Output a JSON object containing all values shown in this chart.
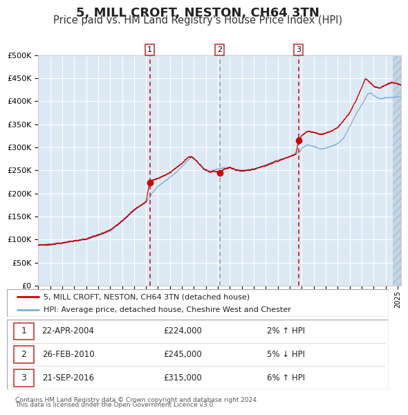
{
  "title": "5, MILL CROFT, NESTON, CH64 3TN",
  "subtitle": "Price paid vs. HM Land Registry's House Price Index (HPI)",
  "ylim": [
    0,
    500000
  ],
  "yticks": [
    0,
    50000,
    100000,
    150000,
    200000,
    250000,
    300000,
    350000,
    400000,
    450000,
    500000
  ],
  "xlim_start": 1995.0,
  "xlim_end": 2025.3,
  "background_color": "#ffffff",
  "plot_bg_color": "#dce9f5",
  "grid_color": "#ffffff",
  "line1_color": "#cc0000",
  "line2_color": "#7ab0d4",
  "purchase1_date": 2004.31,
  "purchase1_price": 224000,
  "purchase2_date": 2010.15,
  "purchase2_price": 245000,
  "purchase3_date": 2016.73,
  "purchase3_price": 315000,
  "legend_line1": "5, MILL CROFT, NESTON, CH64 3TN (detached house)",
  "legend_line2": "HPI: Average price, detached house, Cheshire West and Chester",
  "table_rows": [
    {
      "num": "1",
      "date": "22-APR-2004",
      "price": "£224,000",
      "hpi": "2% ↑ HPI"
    },
    {
      "num": "2",
      "date": "26-FEB-2010",
      "price": "£245,000",
      "hpi": "5% ↓ HPI"
    },
    {
      "num": "3",
      "date": "21-SEP-2016",
      "price": "£315,000",
      "hpi": "6% ↑ HPI"
    }
  ],
  "footer1": "Contains HM Land Registry data © Crown copyright and database right 2024.",
  "footer2": "This data is licensed under the Open Government Licence v3.0.",
  "title_fontsize": 13,
  "subtitle_fontsize": 10.5
}
